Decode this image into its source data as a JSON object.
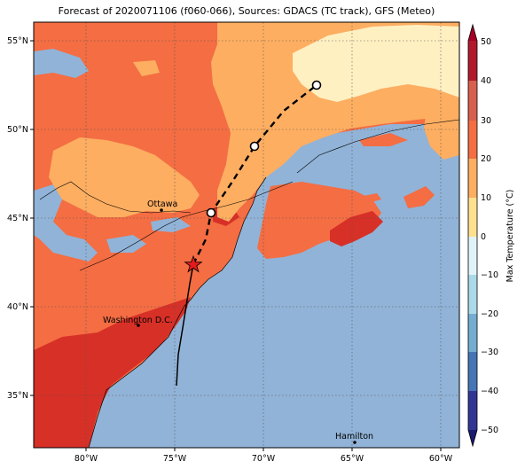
{
  "title": "Forecast of 2020071106 (f060-066), Sources: GDACS (TC track), GFS (Meteo)",
  "map": {
    "lon_ticks": [
      "80°W",
      "75°W",
      "70°W",
      "65°W",
      "60°W"
    ],
    "lat_ticks": [
      "55°N",
      "50°N",
      "45°N",
      "40°N",
      "35°N"
    ],
    "cities": [
      {
        "name": "Ottawa"
      },
      {
        "name": "Washington D.C."
      },
      {
        "name": "Hamilton"
      }
    ]
  },
  "colorbar": {
    "label": "Max Temperature (°C)",
    "ticks": [
      "50",
      "40",
      "30",
      "20",
      "10",
      "0",
      "−10",
      "−20",
      "−30",
      "−40",
      "−50"
    ],
    "colors": [
      "#67001f",
      "#b2182b",
      "#d6604d",
      "#f4a582",
      "#fddbc7",
      "#f7f7f7",
      "#d1e5f0",
      "#92c5de",
      "#4393c3",
      "#2166ac",
      "#053061"
    ]
  },
  "palette": {
    "ocean": "#91b3d7",
    "hot": "#d73027",
    "warm": "#f46d43",
    "mild": "#fdae61",
    "cool": "#fee090",
    "pale": "#fff5cf"
  }
}
